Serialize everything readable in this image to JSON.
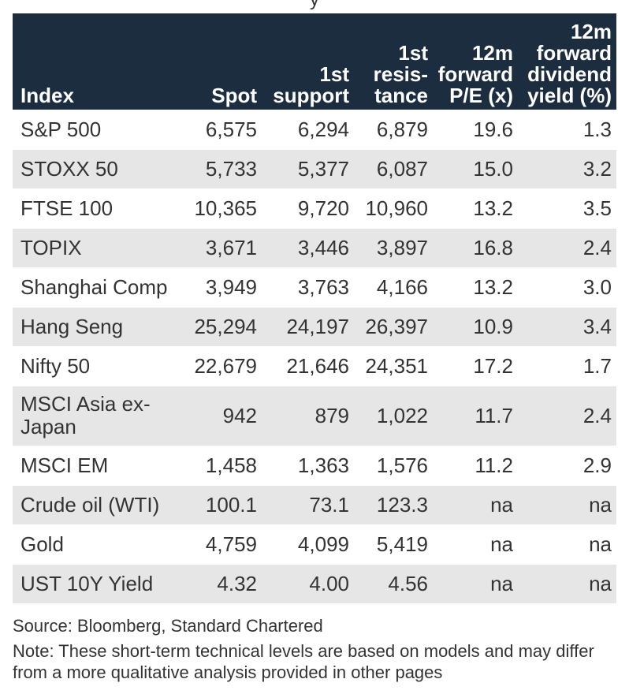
{
  "top_cut_text": "y",
  "table": {
    "headers": {
      "index": "Index",
      "spot": "Spot",
      "support": "1st support",
      "resistance": "1st resis-tance",
      "pe": "12m forward P/E (x)",
      "yield": "12m forward dividend yield (%)"
    },
    "rows": [
      {
        "index": "S&P 500",
        "spot": "6,575",
        "support": "6,294",
        "resistance": "6,879",
        "pe": "19.6",
        "yield": "1.3"
      },
      {
        "index": "STOXX 50",
        "spot": "5,733",
        "support": "5,377",
        "resistance": "6,087",
        "pe": "15.0",
        "yield": "3.2"
      },
      {
        "index": "FTSE 100",
        "spot": "10,365",
        "support": "9,720",
        "resistance": "10,960",
        "pe": "13.2",
        "yield": "3.5"
      },
      {
        "index": "TOPIX",
        "spot": "3,671",
        "support": "3,446",
        "resistance": "3,897",
        "pe": "16.8",
        "yield": "2.4"
      },
      {
        "index": "Shanghai Comp",
        "spot": "3,949",
        "support": "3,763",
        "resistance": "4,166",
        "pe": "13.2",
        "yield": "3.0"
      },
      {
        "index": "Hang Seng",
        "spot": "25,294",
        "support": "24,197",
        "resistance": "26,397",
        "pe": "10.9",
        "yield": "3.4"
      },
      {
        "index": "Nifty 50",
        "spot": "22,679",
        "support": "21,646",
        "resistance": "24,351",
        "pe": "17.2",
        "yield": "1.7"
      },
      {
        "index": "MSCI Asia ex-Japan",
        "spot": "942",
        "support": "879",
        "resistance": "1,022",
        "pe": "11.7",
        "yield": "2.4"
      },
      {
        "index": "MSCI EM",
        "spot": "1,458",
        "support": "1,363",
        "resistance": "1,576",
        "pe": "11.2",
        "yield": "2.9"
      },
      {
        "index": "Crude oil (WTI)",
        "spot": "100.1",
        "support": "73.1",
        "resistance": "123.3",
        "pe": "na",
        "yield": "na"
      },
      {
        "index": "Gold",
        "spot": "4,759",
        "support": "4,099",
        "resistance": "5,419",
        "pe": "na",
        "yield": "na"
      },
      {
        "index": "UST 10Y Yield",
        "spot": "4.32",
        "support": "4.00",
        "resistance": "4.56",
        "pe": "na",
        "yield": "na"
      }
    ]
  },
  "source": "Source: Bloomberg, Standard Chartered",
  "note": "Note: These short-term technical levels are based on models and may differ from a more qualitative analysis provided in other pages",
  "colors": {
    "header_bg": "#1c2d40",
    "header_text": "#ffffff",
    "stripe_bg": "#e6e6e6",
    "body_text": "#333333"
  }
}
